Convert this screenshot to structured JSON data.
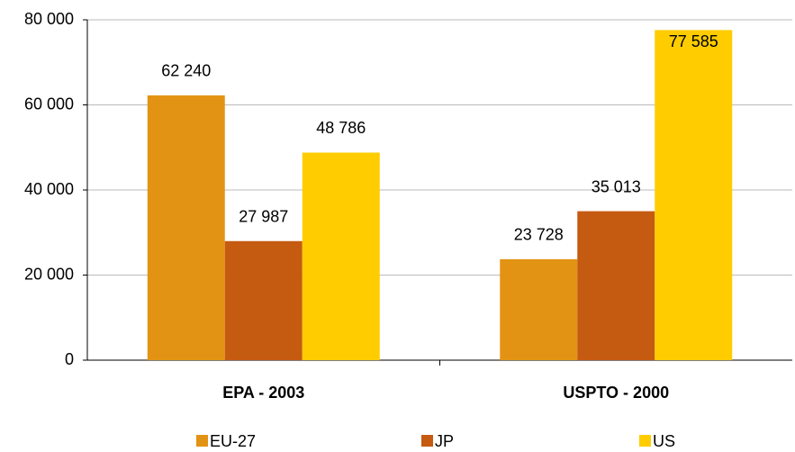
{
  "chart_data": {
    "type": "bar",
    "categories": [
      "EPA - 2003",
      "USPTO - 2000"
    ],
    "series": [
      {
        "name": "EU-27",
        "color": "#e39313",
        "values": [
          62240,
          23728
        ],
        "value_labels": [
          "62 240",
          "23 728"
        ]
      },
      {
        "name": "JP",
        "color": "#c55a11",
        "values": [
          27987,
          35013
        ],
        "value_labels": [
          "27 987",
          "35 013"
        ]
      },
      {
        "name": "US",
        "color": "#ffcc00",
        "values": [
          48786,
          77585
        ],
        "value_labels": [
          "48 786",
          "77 585"
        ]
      }
    ],
    "ylim": [
      0,
      80000
    ],
    "yticks": [
      0,
      {
        "value": 20000,
        "label": "20 000"
      },
      {
        "value": 40000,
        "label": "40 000"
      },
      {
        "value": 60000,
        "label": "60 000"
      },
      {
        "value": 80000,
        "label": "80 000"
      }
    ],
    "grid": true,
    "legend": "bottom"
  }
}
